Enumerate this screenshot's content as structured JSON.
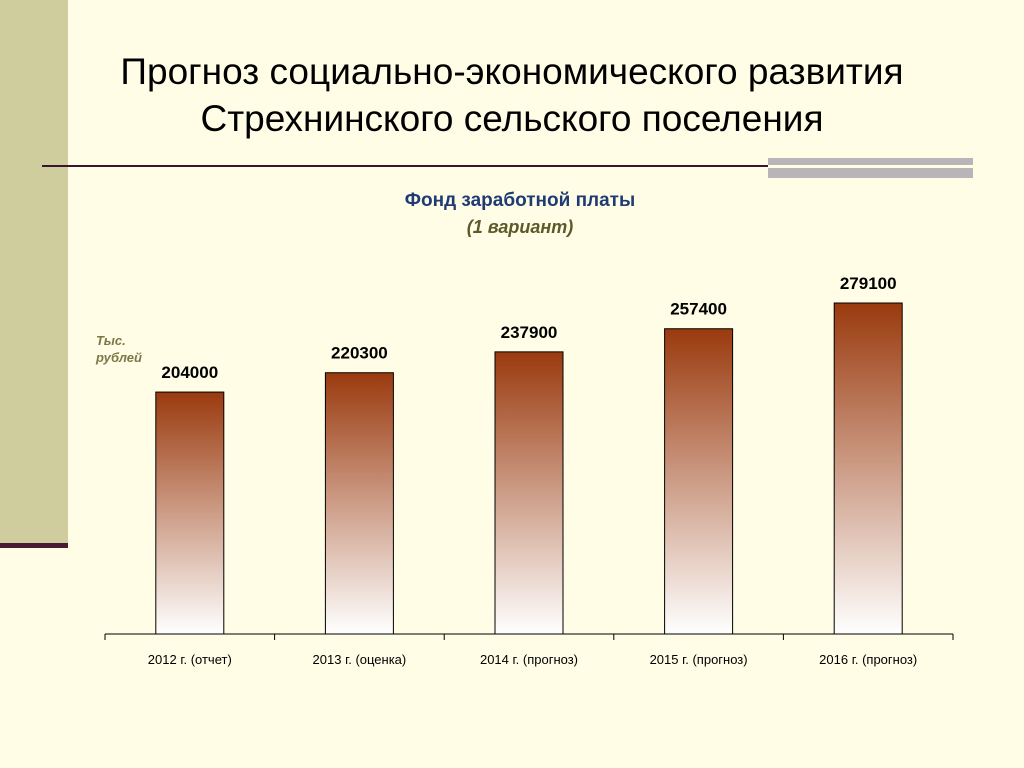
{
  "slide": {
    "title": "Прогноз социально-экономического развития Стрехнинского сельского поселения"
  },
  "chart_data": {
    "type": "bar",
    "title": "Фонд заработной платы",
    "subtitle": "(1 вариант)",
    "ylabel": "Тыс. рублей",
    "categories": [
      "2012 г. (отчет)",
      "2013 г. (оценка)",
      "2014 г. (прогноз)",
      "2015 г. (прогноз)",
      "2016 г. (прогноз)"
    ],
    "values": [
      204000,
      220300,
      237900,
      257400,
      279100
    ],
    "data_labels": [
      "204000",
      "220300",
      "237900",
      "257400",
      "279100"
    ],
    "ylim": [
      0,
      279100
    ],
    "grid": false,
    "bar_color_top": "#9a3a0e",
    "bar_color_bottom": "#ffffff"
  }
}
